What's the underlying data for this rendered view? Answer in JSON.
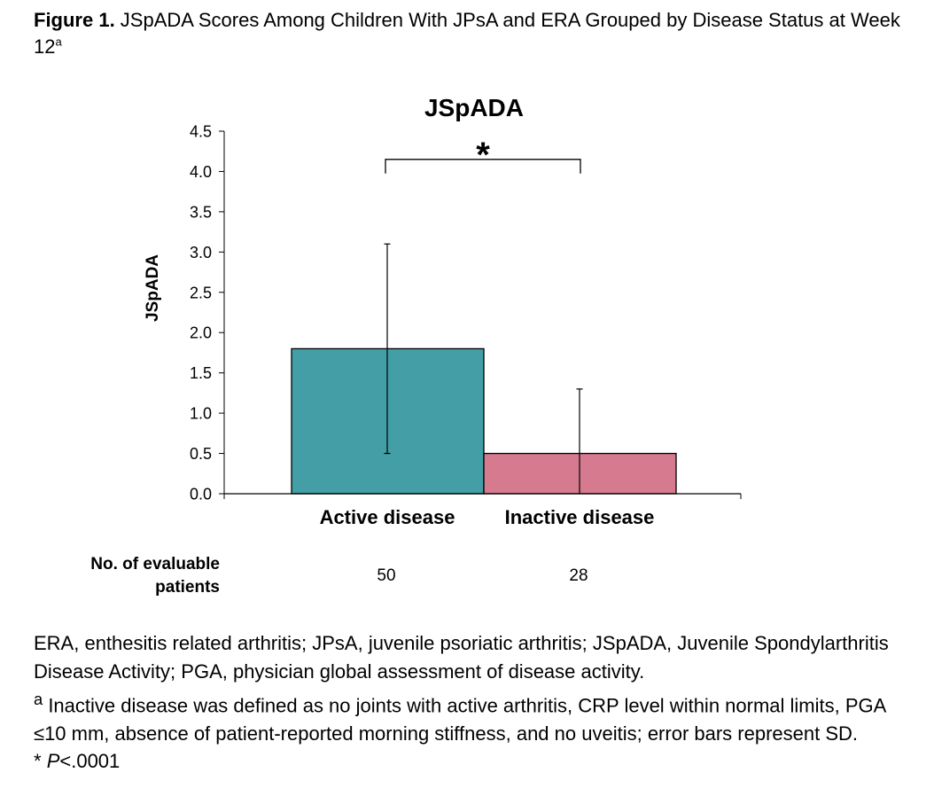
{
  "caption": {
    "label": "Figure 1.",
    "text": " JSpADA Scores Among Children With JPsA and ERA Grouped by Disease Status at Week 12",
    "sup": "a"
  },
  "chart_data": {
    "type": "bar",
    "title": "JSpADA",
    "ylabel": "JSpADA",
    "xlabel": "",
    "ylim": [
      0,
      4.5
    ],
    "yticks": [
      "0.0",
      "0.5",
      "1.0",
      "1.5",
      "2.0",
      "2.5",
      "3.0",
      "3.5",
      "4.0",
      "4.5"
    ],
    "categories": [
      "Active disease",
      "Inactive disease"
    ],
    "values": [
      1.8,
      0.5
    ],
    "error_bars_sd": [
      1.3,
      0.8
    ],
    "colors": [
      "#439ea6",
      "#d57a8f"
    ],
    "significance": {
      "between": [
        "Active disease",
        "Inactive disease"
      ],
      "marker": "*",
      "y": 4.15
    },
    "grid": false,
    "legend": "none",
    "n_label": "No. of evaluable patients",
    "n_label_lines": [
      "No. of evaluable",
      "patients"
    ],
    "n_values": [
      "50",
      "28"
    ]
  },
  "footnotes": {
    "abbrev": "ERA, enthesitis related arthritis; JPsA, juvenile psoriatic arthritis; JSpADA, Juvenile Spondylarthritis Disease Activity; PGA, physician global assessment of disease activity.",
    "note_sup": "a",
    "note": " Inactive disease was defined as no joints with active arthritis, CRP level within normal limits, PGA ≤10 mm, absence of patient-reported morning stiffness, and no uveitis; error bars represent SD.",
    "pvalue_star": "* ",
    "pvalue_p": "P",
    "pvalue_rest": "<.0001"
  }
}
